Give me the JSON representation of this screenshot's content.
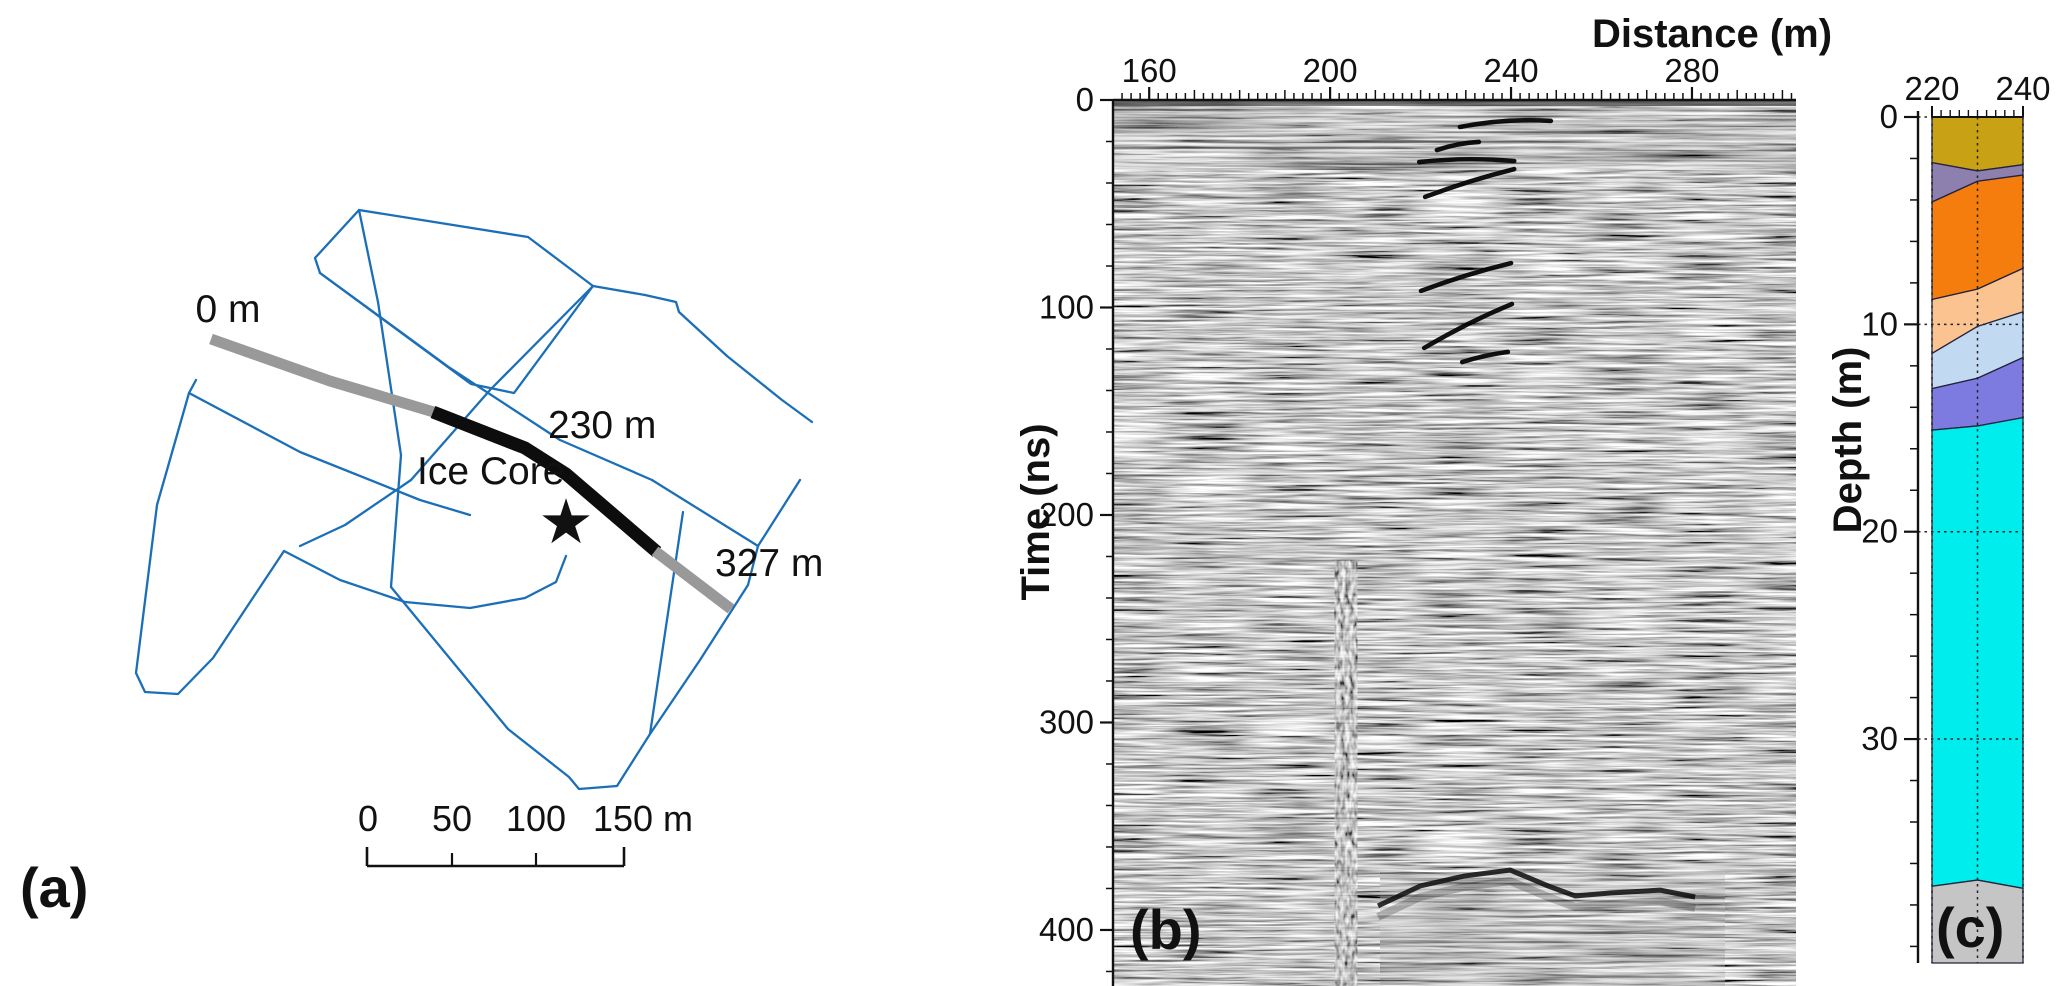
{
  "figure_title": "GPR survey figure: map, radargram and ice-core stratigraphy",
  "chart_data": [
    {
      "panel": "a",
      "type": "map",
      "panel_label": "(a)",
      "profile_labels": {
        "start": "0 m",
        "turn": "230 m",
        "end": "327 m"
      },
      "ice_core_label": "Ice Core",
      "survey_lines_color": "#1b6fb8",
      "profile_highlight_color": "#0d0d0d",
      "profile_other_color": "#999999",
      "ice_core_star_color": "#2d6e52",
      "scale_bar": {
        "tick_labels": [
          "0",
          "50",
          "100",
          "150 m"
        ],
        "tick_values_m": [
          0,
          50,
          100,
          150
        ]
      }
    },
    {
      "panel": "b",
      "type": "radargram",
      "panel_label": "(b)",
      "xlabel": "Distance (m)",
      "ylabel": "Time (ns)",
      "x_range_m": [
        152,
        303
      ],
      "x_tick_labels": [
        160,
        200,
        240,
        280
      ],
      "x_minor_step_m": 2,
      "y_range_ns": [
        0,
        427
      ],
      "y_tick_labels": [
        0,
        100,
        200,
        300,
        400
      ],
      "y_minor_step_ns": 20,
      "reflectors": [
        {
          "x_m": [
            228.7,
            238.7,
            248.8
          ],
          "t_ns": [
            13.0,
            8.7,
            10.1
          ]
        },
        {
          "x_m": [
            223.6,
            228.3,
            232.9
          ],
          "t_ns": [
            24.1,
            20.7,
            20.2
          ]
        },
        {
          "x_m": [
            219.7,
            229.8,
            240.7
          ],
          "t_ns": [
            29.9,
            27.5,
            29.4
          ]
        },
        {
          "x_m": [
            221.0,
            230.9,
            240.7
          ],
          "t_ns": [
            46.7,
            38.6,
            33.3
          ]
        },
        {
          "x_m": [
            220.1,
            230.0,
            240.0
          ],
          "t_ns": [
            92.0,
            83.9,
            78.6
          ]
        },
        {
          "x_m": [
            220.8,
            230.5,
            240.2
          ],
          "t_ns": [
            119.5,
            107.0,
            98.3
          ]
        },
        {
          "x_m": [
            229.2,
            234.2,
            239.3
          ],
          "t_ns": [
            126.3,
            122.9,
            121.4
          ]
        }
      ],
      "basal_reflector": {
        "x_m": [
          210.6,
          219.9,
          229.6,
          239.8,
          248.2,
          254.2,
          261.9,
          273.0,
          280.7
        ],
        "t_ns": [
          388.4,
          378.8,
          374.0,
          371.1,
          378.8,
          383.6,
          382.2,
          380.8,
          384.1
        ]
      },
      "noise_column": {
        "x_m": [
          201,
          206
        ],
        "t_ns": [
          222,
          427
        ]
      }
    },
    {
      "panel": "c",
      "type": "stratigraphy_column",
      "panel_label": "(c)",
      "ylabel": "Depth (m)",
      "x_range_m": [
        220,
        240
      ],
      "x_tick_labels": [
        220,
        240
      ],
      "x_minor_step_m": 2,
      "y_range_m": [
        0,
        40.8
      ],
      "y_tick_labels": [
        0,
        10,
        20,
        30
      ],
      "y_minor_step_m": 2,
      "grid": "dotted",
      "layers": [
        {
          "name": "layer-1-mustard",
          "color": "#c9a115",
          "depth_bottom_m": [
            2.2,
            2.6,
            2.3
          ]
        },
        {
          "name": "layer-2-purple",
          "color": "#8d80ae",
          "depth_bottom_m": [
            4.1,
            3.1,
            2.8
          ]
        },
        {
          "name": "layer-3-orange",
          "color": "#f57d0d",
          "depth_bottom_m": [
            8.8,
            8.3,
            7.3
          ]
        },
        {
          "name": "layer-4-peach",
          "color": "#fac38f",
          "depth_bottom_m": [
            11.4,
            10.1,
            9.4
          ]
        },
        {
          "name": "layer-5-lightblue",
          "color": "#c2d9f2",
          "depth_bottom_m": [
            13.1,
            12.6,
            11.6
          ]
        },
        {
          "name": "layer-6-violetblue",
          "color": "#7d7be0",
          "depth_bottom_m": [
            15.1,
            14.9,
            14.5
          ]
        },
        {
          "name": "layer-7-cyan",
          "color": "#00eded",
          "depth_bottom_m": [
            37.1,
            36.8,
            37.2
          ]
        },
        {
          "name": "layer-8-gray",
          "color": "#c5c5c5",
          "depth_bottom_m": [
            40.8,
            40.8,
            40.8
          ]
        }
      ]
    }
  ]
}
